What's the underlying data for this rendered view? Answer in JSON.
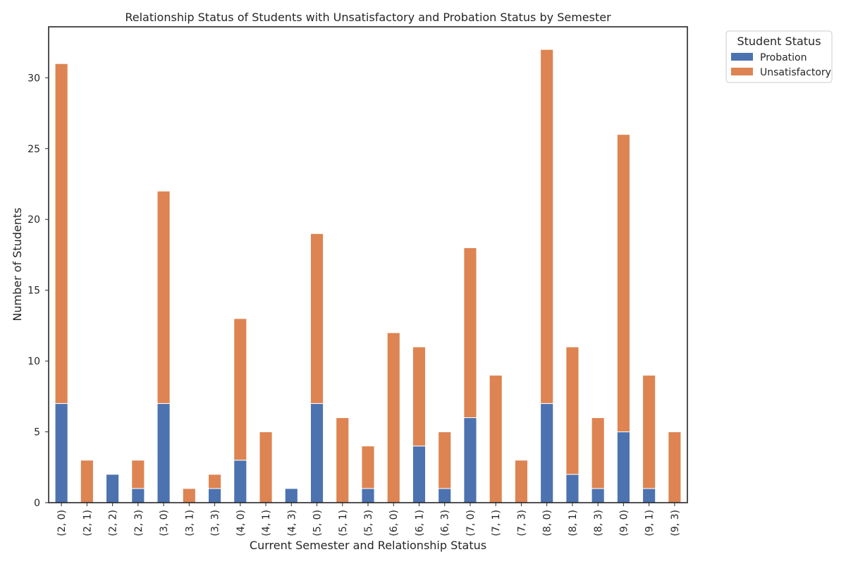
{
  "chart_data": {
    "type": "bar",
    "stacked": true,
    "title": "Relationship Status of Students with Unsatisfactory and Probation Status by Semester",
    "xlabel": "Current Semester and Relationship Status",
    "ylabel": "Number of Students",
    "ylim": [
      0,
      33.6
    ],
    "yticks": [
      0,
      5,
      10,
      15,
      20,
      25,
      30
    ],
    "grid": false,
    "legend": {
      "title": "Student Status",
      "placement": "outside-top-right"
    },
    "categories": [
      "(2, 0)",
      "(2, 1)",
      "(2, 2)",
      "(2, 3)",
      "(3, 0)",
      "(3, 1)",
      "(3, 3)",
      "(4, 0)",
      "(4, 1)",
      "(4, 3)",
      "(5, 0)",
      "(5, 1)",
      "(5, 3)",
      "(6, 0)",
      "(6, 1)",
      "(6, 3)",
      "(7, 0)",
      "(7, 1)",
      "(7, 3)",
      "(8, 0)",
      "(8, 1)",
      "(8, 3)",
      "(9, 0)",
      "(9, 1)",
      "(9, 3)"
    ],
    "series": [
      {
        "name": "Probation",
        "color": "#4c72b0",
        "values": [
          7,
          0,
          2,
          1,
          7,
          0,
          1,
          3,
          0,
          1,
          7,
          0,
          1,
          0,
          4,
          1,
          6,
          0,
          0,
          7,
          2,
          1,
          5,
          1,
          0
        ]
      },
      {
        "name": "Unsatisfactory",
        "color": "#dd8452",
        "values": [
          24,
          3,
          0,
          2,
          15,
          1,
          1,
          10,
          5,
          0,
          12,
          6,
          3,
          12,
          7,
          4,
          12,
          9,
          3,
          25,
          9,
          5,
          21,
          8,
          5
        ]
      }
    ]
  }
}
